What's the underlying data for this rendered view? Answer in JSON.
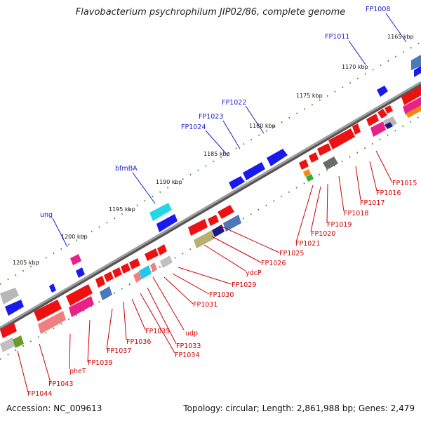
{
  "title": "Flavobacterium psychrophilum JIP02/86, complete genome",
  "accession": "Accession: NC_009613",
  "summary": "Topology: circular; Length: 2,861,988 bp; Genes: 2,479",
  "scale": [
    {
      "label": "1165 kbp"
    },
    {
      "label": "1170 kbp"
    },
    {
      "label": "1175 kbp"
    },
    {
      "label": "1180 kbp"
    },
    {
      "label": "1185 kbp"
    },
    {
      "label": "1190 kbp"
    },
    {
      "label": "1195 kbp"
    },
    {
      "label": "1200 kbp"
    },
    {
      "label": "1205 kbp"
    }
  ],
  "gene_labels_forward": [
    "FP1008",
    "FP1011",
    "FP1022",
    "FP1023",
    "FP1024",
    "bfmBA",
    "ung"
  ],
  "gene_labels_reverse": [
    "FP1015",
    "FP1016",
    "FP1017",
    "FP1018",
    "FP1019",
    "FP1020",
    "FP1021",
    "FP1025",
    "FP1026",
    "ydcP",
    "FP1029",
    "FP1030",
    "FP1031",
    "udp",
    "FP1033",
    "FP1034",
    "FP1035",
    "FP1036",
    "FP1037",
    "FP1039",
    "pheT",
    "FP1043",
    "FP1044"
  ],
  "colors": {
    "backbone": "#8a8a8a",
    "forward_gene": "#1a1aee",
    "reverse_gene": "#ee1111",
    "label_forward": "#1c1cc8",
    "label_reverse": "#d00000",
    "tick": "#2e8b2e"
  }
}
